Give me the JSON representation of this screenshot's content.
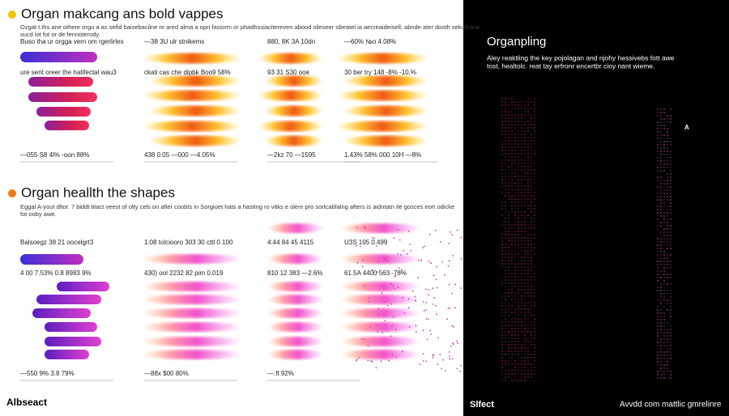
{
  "section1": {
    "title": "Organ makcang ans bold vappes",
    "description": [
      "Ozgat t.ths ane othere orgu a as sefid baisebacilne re ared alma a opri fasiorm or phadhssiacitereven abood sileseer obeatel ia aecreaideisell, abnde ater dooth sekuthane,",
      "sucd lot fot or de fennoterody."
    ],
    "headers": [
      "Buso tha ur orgga vern om rgerlirles",
      "—38 3U ulr stnikems",
      "880, 8K 3A 10dn",
      "—60% №o 4.08%"
    ],
    "subheaders": [
      "ure sent oreer the hatifectal wau3",
      "ckati cas che dipbk Boo9 58%",
      "93 31 S30 ooe",
      "30 ber try 148 -8% -10,%"
    ],
    "footers": [
      "—055 S8 4l% -oon 88%",
      "438 0.05 —000 —4.05%",
      "—2kz 70 —1595",
      "1.43% 58% 000 10H —8%"
    ]
  },
  "section2": {
    "title": "Organ heallth the shapes",
    "description": [
      "Eggal A-yout dltor. 7 biddt titact veest of olty cels on afier coobts in Sorgioet hats a hasting ro vitks e olem pro sortcatifalng afters is aidntatn ile gosces eort odicke",
      "fot ooby awe."
    ],
    "headers": [
      "Balsoegz 38 21 oocelgrt3",
      "1:08 tolciooro 303 30 cttl 0.100",
      "4:44 84 45 4115",
      "U3S 105 0.499"
    ],
    "subheaders": [
      "4 00 7.53% 0.8 8983 9%",
      "430) ool 2232 82 pim 0.019",
      "810 12 383 —2.6%",
      "61.5A 4400 563 -78%"
    ],
    "footers": [
      "—550 9% 3.8 79%",
      "—88x $00 80%",
      "—.ft 92%"
    ]
  },
  "footer_left": "Albseact",
  "side": {
    "title": "Organpling",
    "description": [
      "Aley reaktling the key pojolagan and njohy hessivebs fott awe",
      "tost, healtolc. reat tay erfronr encertbr cioy nant wieme."
    ],
    "marker": "A",
    "footer_left": "Slfect",
    "footer_right": "Avvdd com mattlic gmrelinre"
  }
}
